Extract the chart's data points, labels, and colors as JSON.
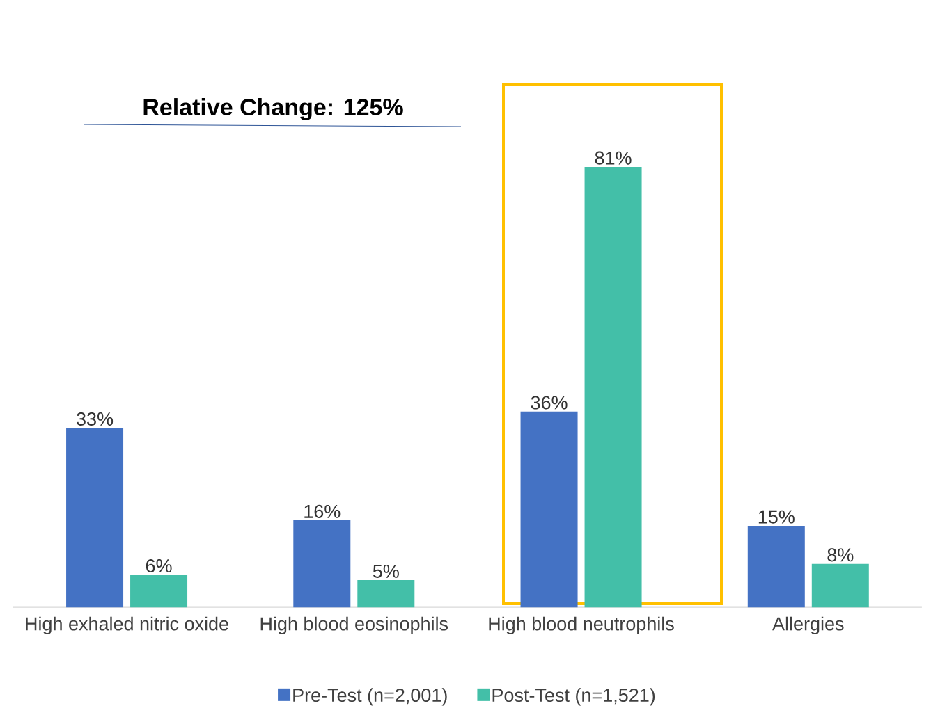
{
  "chart_data": {
    "type": "bar",
    "categories": [
      "High exhaled nitric oxide",
      "High blood eosinophils",
      "High blood neutrophils",
      "Allergies"
    ],
    "series": [
      {
        "name": "Pre-Test (n=2,001)",
        "color": "#4472c4",
        "values": [
          33,
          16,
          36,
          15
        ],
        "value_labels": [
          "33%",
          "16%",
          "36%",
          "15%"
        ]
      },
      {
        "name": "Post-Test (n=1,521)",
        "color": "#43bfa8",
        "values": [
          6,
          5,
          81,
          8
        ],
        "value_labels": [
          "6%",
          "5%",
          "81%",
          "8%"
        ]
      }
    ],
    "annotations": [
      "Relative Change: 125%"
    ],
    "legend": "bottom"
  }
}
